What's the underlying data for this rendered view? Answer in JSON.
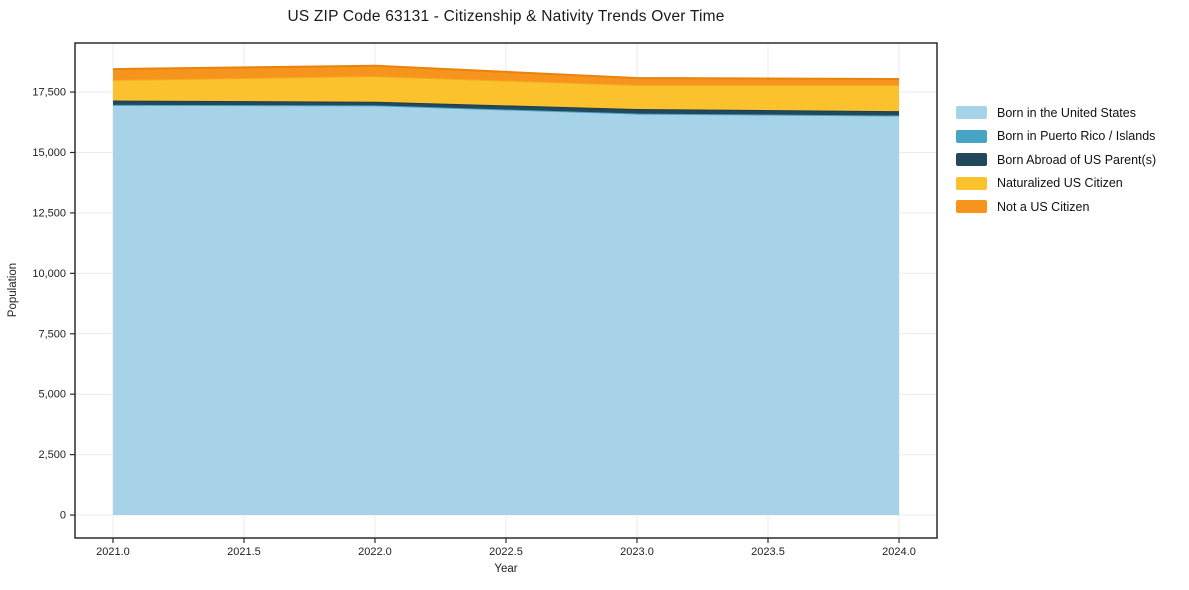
{
  "title": "US ZIP Code 63131 - Citizenship & Nativity Trends Over Time",
  "chart_data": {
    "type": "area",
    "stacked": true,
    "title": "US ZIP Code 63131 - Citizenship & Nativity Trends Over Time",
    "xlabel": "Year",
    "ylabel": "Population",
    "x": [
      2021,
      2022,
      2023,
      2024
    ],
    "series": [
      {
        "name": "Born in the United States",
        "color": "#A7D3E8",
        "edge": "#A7D3E8",
        "values": [
          16950,
          16930,
          16590,
          16510
        ]
      },
      {
        "name": "Born in Puerto Rico / Islands",
        "color": "#47A4C4",
        "edge": "#47A4C4",
        "values": [
          20,
          20,
          20,
          20
        ]
      },
      {
        "name": "Born Abroad of US Parent(s)",
        "color": "#23485C",
        "edge": "#1D3E50",
        "values": [
          180,
          150,
          190,
          180
        ]
      },
      {
        "name": "Naturalized US Citizen",
        "color": "#FCC22E",
        "edge": "#F3AC1D",
        "values": [
          850,
          1060,
          990,
          1080
        ]
      },
      {
        "name": "Not a US Citizen",
        "color": "#F7941E",
        "edge": "#E8830B",
        "values": [
          450,
          430,
          290,
          250
        ]
      }
    ],
    "xlim": [
      2020.855,
      2024.145
    ],
    "ylim": [
      -950,
      19530
    ],
    "xticks": [
      2021.0,
      2021.5,
      2022.0,
      2022.5,
      2023.0,
      2023.5,
      2024.0
    ],
    "yticks": [
      0,
      2500,
      5000,
      7500,
      10000,
      12500,
      15000,
      17500
    ],
    "grid": true,
    "grid_color": "#EBEBEB",
    "axis_color": "#2B2B2B",
    "tick_label_color": "#222222",
    "legend_position": "right"
  }
}
